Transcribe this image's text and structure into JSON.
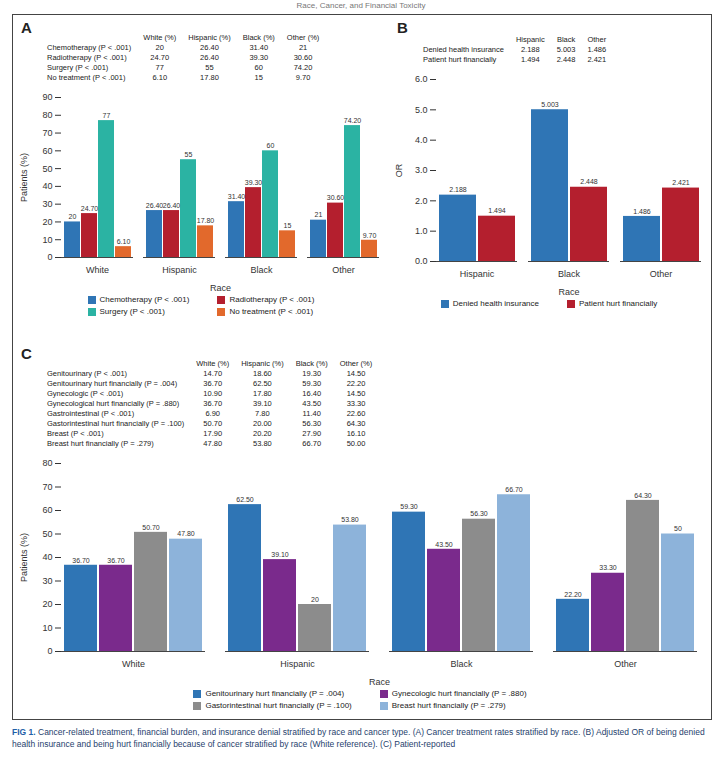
{
  "header": "Race, Cancer, and Financial Toxicity",
  "figure_label": "FIG 1.",
  "caption": "Cancer-related treatment, financial burden, and insurance denial stratified by race and cancer type. (A) Cancer treatment rates stratified by race. (B) Adjusted OR of being denied health insurance and being hurt financially because of cancer stratified by race (White reference). (C) Patient-reported",
  "chart_data": [
    {
      "type": "bar",
      "title": "A",
      "x_label": "Race",
      "y_label": "Patients (%)",
      "categories": [
        "White",
        "Hispanic",
        "Black",
        "Other"
      ],
      "series": [
        {
          "name": "Chemotherapy (P < .001)",
          "color": "#2f75b5",
          "values": [
            20,
            26.4,
            31.4,
            21
          ],
          "value_labels": [
            "20",
            "26.40",
            "31.40",
            "21"
          ]
        },
        {
          "name": "Radiotherapy (P < .001)",
          "color": "#b41f2e",
          "values": [
            24.7,
            26.4,
            39.3,
            30.6
          ],
          "value_labels": [
            "24.70",
            "26.40",
            "39.30",
            "30.60"
          ]
        },
        {
          "name": "Surgery (P < .001)",
          "color": "#2bb3a3",
          "values": [
            77,
            55,
            60,
            74.2
          ],
          "value_labels": [
            "77",
            "55",
            "60",
            "74.20"
          ]
        },
        {
          "name": "No treatment (P < .001)",
          "color": "#e2692c",
          "values": [
            6.1,
            17.8,
            15,
            9.7
          ],
          "value_labels": [
            "6.10",
            "17.80",
            "15",
            "9.70"
          ]
        }
      ],
      "ylim": [
        0,
        90
      ],
      "yticks": [
        0,
        10,
        20,
        30,
        40,
        50,
        60,
        70,
        80,
        90
      ],
      "grid": false,
      "data_labels": true,
      "legend": "bottom",
      "table": {
        "header": [
          null,
          "White (%)",
          "Hispanic (%)",
          "Black (%)",
          "Other (%)"
        ],
        "rows": [
          [
            "Chemotherapy (P < .001)",
            "20",
            "26.40",
            "31.40",
            "21"
          ],
          [
            "Radiotherapy (P < .001)",
            "24.70",
            "26.40",
            "39.30",
            "30.60"
          ],
          [
            "Surgery (P < .001)",
            "77",
            "55",
            "60",
            "74.20"
          ],
          [
            "No treatment (P < .001)",
            "6.10",
            "17.80",
            "15",
            "9.70"
          ]
        ]
      }
    },
    {
      "type": "bar",
      "title": "B",
      "x_label": "Race",
      "y_label": "OR",
      "categories": [
        "Hispanic",
        "Black",
        "Other"
      ],
      "series": [
        {
          "name": "Denied health insurance",
          "color": "#2f75b5",
          "values": [
            2.188,
            5.003,
            1.486
          ]
        },
        {
          "name": "Patient hurt financially",
          "color": "#b41f2e",
          "values": [
            1.494,
            2.448,
            2.421
          ]
        }
      ],
      "ylim": [
        0,
        6
      ],
      "yticks": [
        0,
        1,
        2,
        3,
        4,
        5,
        6
      ],
      "grid": false,
      "data_labels": true,
      "legend": "bottom",
      "table": {
        "header": [
          null,
          "Hispanic",
          "Black",
          "Other"
        ],
        "rows": [
          [
            "Denied health insurance",
            "2.188",
            "5.003",
            "1.486"
          ],
          [
            "Patient hurt financially",
            "1.494",
            "2.448",
            "2.421"
          ]
        ]
      }
    },
    {
      "type": "bar",
      "title": "C",
      "x_label": "Race",
      "y_label": "Patients (%)",
      "categories": [
        "White",
        "Hispanic",
        "Black",
        "Other"
      ],
      "series": [
        {
          "name": "Genitourinary hurt financially (P = .004)",
          "color": "#2f75b5",
          "values": [
            36.7,
            62.5,
            59.3,
            22.2
          ],
          "value_labels": [
            "36.70",
            "62.50",
            "59.30",
            "22.20"
          ]
        },
        {
          "name": "Gynecologic hurt financially (P = .880)",
          "color": "#7a2a8c",
          "values": [
            36.7,
            39.1,
            43.5,
            33.3
          ],
          "value_labels": [
            "36.70",
            "39.10",
            "43.50",
            "33.30"
          ]
        },
        {
          "name": "Gastorintestinal hurt financially (P = .100)",
          "color": "#8c8c8c",
          "values": [
            50.7,
            20,
            56.3,
            64.3
          ],
          "value_labels": [
            "50.70",
            "20",
            "56.30",
            "64.30"
          ]
        },
        {
          "name": "Breast hurt financially (P = .279)",
          "color": "#8db3da",
          "values": [
            47.8,
            53.8,
            66.7,
            50
          ],
          "value_labels": [
            "47.80",
            "53.80",
            "66.70",
            "50"
          ]
        }
      ],
      "ylim": [
        0,
        80
      ],
      "yticks": [
        0,
        10,
        20,
        30,
        40,
        50,
        60,
        70,
        80
      ],
      "grid": false,
      "data_labels": true,
      "legend": "bottom",
      "table": {
        "header": [
          null,
          "White (%)",
          "Hispanic (%)",
          "Black (%)",
          "Other (%)"
        ],
        "rows": [
          [
            "Genitourinary (P < .001)",
            "14.70",
            "18.60",
            "19.30",
            "14.50"
          ],
          [
            "Genitourinary hurt financially (P = .004)",
            "36.70",
            "62.50",
            "59.30",
            "22.20"
          ],
          [
            "Gynecologic (P < .001)",
            "10.90",
            "17.80",
            "16.40",
            "14.50"
          ],
          [
            "Gynecological hurt financially (P = .880)",
            "36.70",
            "39.10",
            "43.50",
            "33.30"
          ],
          [
            "Gastrointestinal (P < .001)",
            "6.90",
            "7.80",
            "11.40",
            "22.60"
          ],
          [
            "Gastorintestinal hurt financially (P = .100)",
            "50.70",
            "20.00",
            "56.30",
            "64.30"
          ],
          [
            "Breast (P < .001)",
            "17.90",
            "20.20",
            "27.90",
            "16.10"
          ],
          [
            "Breast hurt financially (P = .279)",
            "47.80",
            "53.80",
            "66.70",
            "50.00"
          ]
        ]
      }
    }
  ]
}
